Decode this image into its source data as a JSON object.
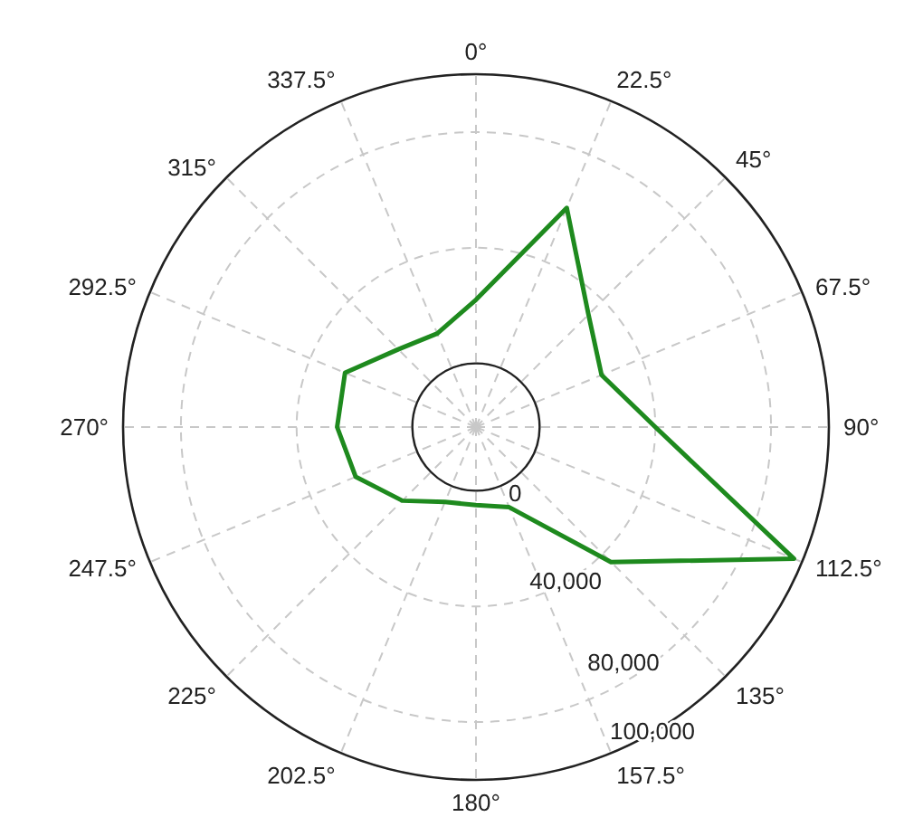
{
  "chart_data": {
    "type": "radar",
    "categories": [
      "0°",
      "22.5°",
      "45°",
      "67.5°",
      "90°",
      "112.5°",
      "135°",
      "157.5°",
      "180°",
      "202.5°",
      "225°",
      "247.5°",
      "270°",
      "292.5°",
      "315°",
      "337.5°"
    ],
    "series": [
      {
        "color": "#1e8a1e",
        "values": [
          22000,
          60000,
          33000,
          25000,
          40000,
          97000,
          44000,
          8000,
          5000,
          6000,
          14000,
          23000,
          26000,
          27000,
          16000,
          13000
        ]
      }
    ],
    "ylim": [
      -22000,
      100000
    ],
    "yticks": [
      0,
      {
        "value": 40000,
        "label": "40,000"
      },
      {
        "value": 80000,
        "label": "80,000"
      },
      {
        "value": 100000,
        "label": "100,000"
      }
    ],
    "grid": true
  }
}
